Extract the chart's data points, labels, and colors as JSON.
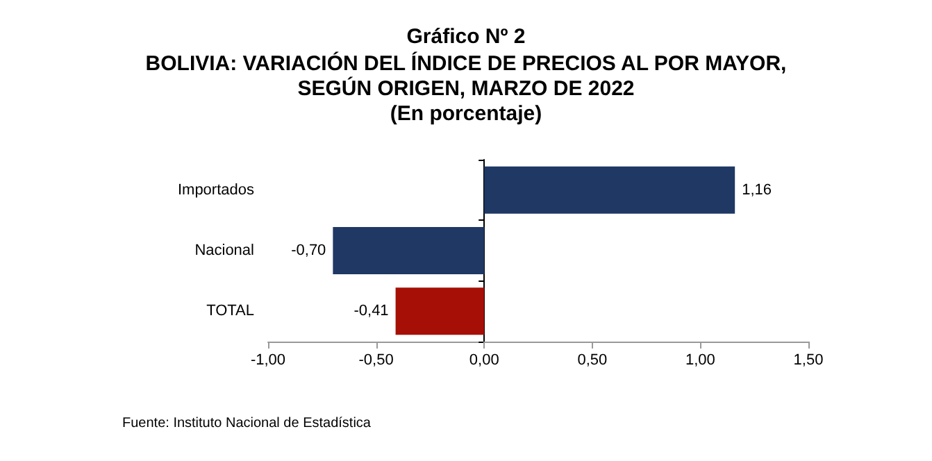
{
  "chart_data": {
    "type": "bar",
    "orientation": "horizontal",
    "title": "Gráfico Nº 2",
    "subtitle": "BOLIVIA: VARIACIÓN DEL ÍNDICE DE PRECIOS AL POR MAYOR,\nSEGÚN ORIGEN, MARZO DE 2022\n(En porcentaje)",
    "categories": [
      "Importados",
      "Nacional",
      "TOTAL"
    ],
    "values": [
      1.16,
      -0.7,
      -0.41
    ],
    "colors": [
      "#1f3864",
      "#1f3864",
      "#a50f05"
    ],
    "value_labels": [
      "1,16",
      "-0,70",
      "-0,41"
    ],
    "xlim": [
      -1,
      1.5
    ],
    "xticks": [
      {
        "value": -1,
        "label": "-1,00"
      },
      {
        "value": -0.5,
        "label": "-0,50"
      },
      {
        "value": 0,
        "label": "0,00"
      },
      {
        "value": 0.5,
        "label": "0,50"
      },
      {
        "value": 1,
        "label": "1,00"
      },
      {
        "value": 1.5,
        "label": "1,50"
      }
    ],
    "annotations": [
      "Fuente: Instituto Nacional de Estadística"
    ]
  }
}
